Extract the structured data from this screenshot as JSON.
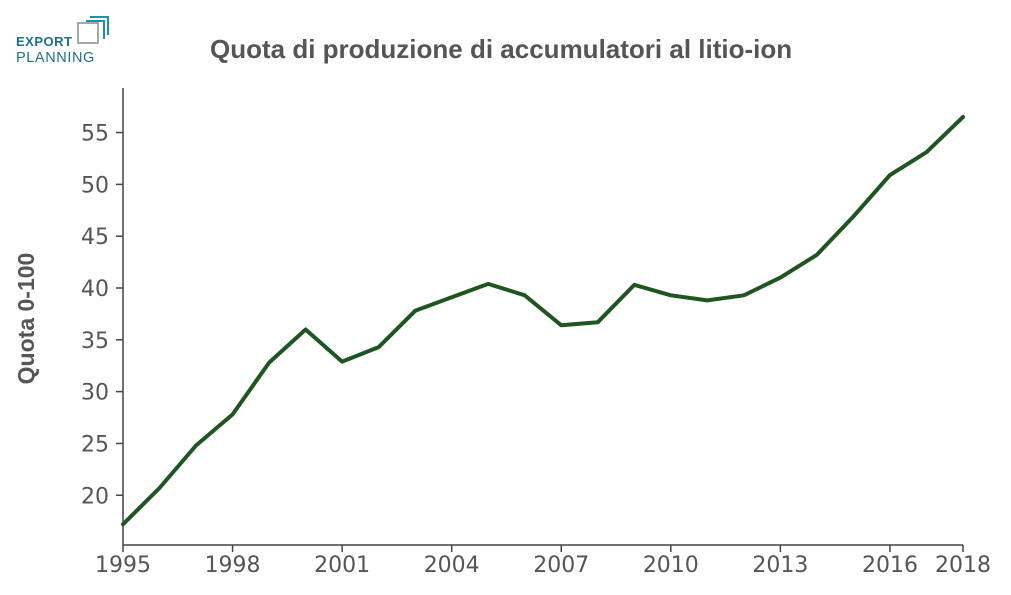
{
  "logo": {
    "line1": "EXPORT",
    "line2": "PLANNING",
    "color_line1": "#1f6f8b",
    "color_line2": "#1f6f8b"
  },
  "colors": {
    "line": "#1e5520",
    "axis": "#444444",
    "text": "#555555"
  },
  "chart_data": {
    "type": "line",
    "title": "Quota di produzione di accumulatori al litio-ion",
    "xlabel": "",
    "ylabel": "Quota 0-100",
    "x": [
      1995,
      1996,
      1997,
      1998,
      1999,
      2000,
      2001,
      2002,
      2003,
      2004,
      2005,
      2006,
      2007,
      2008,
      2009,
      2010,
      2011,
      2012,
      2013,
      2014,
      2015,
      2016,
      2017,
      2018
    ],
    "values": [
      17.2,
      20.7,
      24.8,
      27.8,
      32.8,
      36.0,
      32.9,
      34.3,
      37.8,
      39.1,
      40.4,
      39.3,
      36.4,
      36.7,
      40.3,
      39.3,
      38.8,
      39.3,
      41.0,
      43.2,
      46.9,
      50.9,
      53.1,
      56.5
    ],
    "xlim": [
      1995,
      2018
    ],
    "ylim": [
      15.2,
      59.3
    ],
    "xticks": [
      1995,
      1998,
      2001,
      2004,
      2007,
      2010,
      2013,
      2016,
      2018
    ],
    "yticks": [
      20,
      25,
      30,
      35,
      40,
      45,
      50,
      55
    ],
    "grid": false,
    "legend": "none"
  }
}
